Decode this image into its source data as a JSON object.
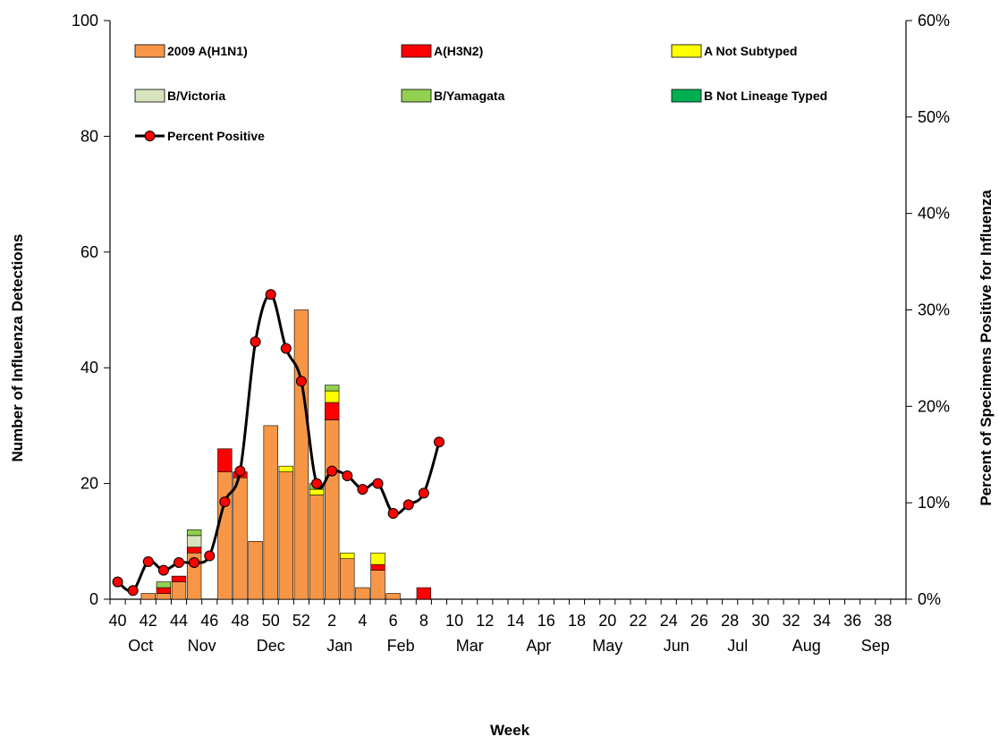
{
  "chart_data": {
    "type": "bar",
    "stacked": true,
    "xlabel": "Week",
    "ylabel_left": "Number of Influenza Detections",
    "ylabel_right": "Percent of Specimens Positive for Influenza",
    "ylim_left": [
      0,
      100
    ],
    "ylim_right": [
      0,
      60
    ],
    "yticks_left": [
      "0",
      "20",
      "40",
      "60",
      "80",
      "100"
    ],
    "yticks_right": [
      "0%",
      "10%",
      "20%",
      "30%",
      "40%",
      "50%",
      "60%"
    ],
    "grid": false,
    "legend_position": "top",
    "weeks": [
      40,
      41,
      42,
      43,
      44,
      45,
      46,
      47,
      48,
      49,
      50,
      51,
      52,
      1,
      2,
      3,
      4,
      5,
      6,
      7,
      8,
      9,
      10,
      11,
      12,
      13,
      14,
      15,
      16,
      17,
      18,
      19,
      20,
      21,
      22,
      23,
      24,
      25,
      26,
      27,
      28,
      29,
      30,
      31,
      32,
      33,
      34,
      35,
      36,
      37,
      38,
      39
    ],
    "week_tick_labels": [
      "40",
      "42",
      "44",
      "46",
      "48",
      "50",
      "52",
      "2",
      "4",
      "6",
      "8",
      "10",
      "12",
      "14",
      "16",
      "18",
      "20",
      "22",
      "24",
      "26",
      "28",
      "30",
      "32",
      "34",
      "36",
      "38"
    ],
    "month_labels": [
      "Oct",
      "Nov",
      "Dec",
      "Jan",
      "Feb",
      "Mar",
      "Apr",
      "May",
      "Jun",
      "Jul",
      "Aug",
      "Sep"
    ],
    "series": [
      {
        "name": "2009 A(H1N1)",
        "color": "#f79646",
        "values": [
          0,
          0,
          1,
          1,
          3,
          8,
          0,
          22,
          21,
          10,
          30,
          22,
          50,
          18,
          31,
          7,
          2,
          5,
          1,
          0,
          0,
          0,
          0,
          0,
          0,
          0,
          0,
          0,
          0,
          0,
          0,
          0,
          0,
          0,
          0,
          0,
          0,
          0,
          0,
          0,
          0,
          0,
          0,
          0,
          0,
          0,
          0,
          0,
          0,
          0,
          0,
          0
        ]
      },
      {
        "name": "A(H3N2)",
        "color": "#ff0000",
        "values": [
          0,
          0,
          0,
          1,
          1,
          1,
          0,
          4,
          1,
          0,
          0,
          0,
          0,
          0,
          3,
          0,
          0,
          1,
          0,
          0,
          2,
          0,
          0,
          0,
          0,
          0,
          0,
          0,
          0,
          0,
          0,
          0,
          0,
          0,
          0,
          0,
          0,
          0,
          0,
          0,
          0,
          0,
          0,
          0,
          0,
          0,
          0,
          0,
          0,
          0,
          0,
          0
        ]
      },
      {
        "name": "A Not Subtyped",
        "color": "#ffff00",
        "values": [
          0,
          0,
          0,
          0,
          0,
          0,
          0,
          0,
          0,
          0,
          0,
          1,
          0,
          1,
          2,
          1,
          0,
          2,
          0,
          0,
          0,
          0,
          0,
          0,
          0,
          0,
          0,
          0,
          0,
          0,
          0,
          0,
          0,
          0,
          0,
          0,
          0,
          0,
          0,
          0,
          0,
          0,
          0,
          0,
          0,
          0,
          0,
          0,
          0,
          0,
          0,
          0
        ]
      },
      {
        "name": "B/Victoria",
        "color": "#d7e4bd",
        "values": [
          0,
          0,
          0,
          0,
          0,
          2,
          0,
          0,
          0,
          0,
          0,
          0,
          0,
          0,
          0,
          0,
          0,
          0,
          0,
          0,
          0,
          0,
          0,
          0,
          0,
          0,
          0,
          0,
          0,
          0,
          0,
          0,
          0,
          0,
          0,
          0,
          0,
          0,
          0,
          0,
          0,
          0,
          0,
          0,
          0,
          0,
          0,
          0,
          0,
          0,
          0,
          0
        ]
      },
      {
        "name": "B/Yamagata",
        "color": "#92d050",
        "values": [
          0,
          0,
          0,
          1,
          0,
          1,
          0,
          0,
          0,
          0,
          0,
          0,
          0,
          1,
          1,
          0,
          0,
          0,
          0,
          0,
          0,
          0,
          0,
          0,
          0,
          0,
          0,
          0,
          0,
          0,
          0,
          0,
          0,
          0,
          0,
          0,
          0,
          0,
          0,
          0,
          0,
          0,
          0,
          0,
          0,
          0,
          0,
          0,
          0,
          0,
          0,
          0
        ]
      },
      {
        "name": "B Not Lineage Typed",
        "color": "#00b050",
        "values": [
          0,
          0,
          0,
          0,
          0,
          0,
          0,
          0,
          0,
          0,
          0,
          0,
          0,
          0,
          0,
          0,
          0,
          0,
          0,
          0,
          0,
          0,
          0,
          0,
          0,
          0,
          0,
          0,
          0,
          0,
          0,
          0,
          0,
          0,
          0,
          0,
          0,
          0,
          0,
          0,
          0,
          0,
          0,
          0,
          0,
          0,
          0,
          0,
          0,
          0,
          0,
          0
        ]
      }
    ],
    "percent_positive": {
      "name": "Percent Positive",
      "color": "#000000",
      "marker_color": "#ff0000",
      "values": [
        1.8,
        0.9,
        3.9,
        3.0,
        3.8,
        3.8,
        4.5,
        10.1,
        13.3,
        26.7,
        31.6,
        26.0,
        22.6,
        12.0,
        13.3,
        12.8,
        11.4,
        12.0,
        8.9,
        9.8,
        11.0,
        16.3
      ]
    }
  }
}
